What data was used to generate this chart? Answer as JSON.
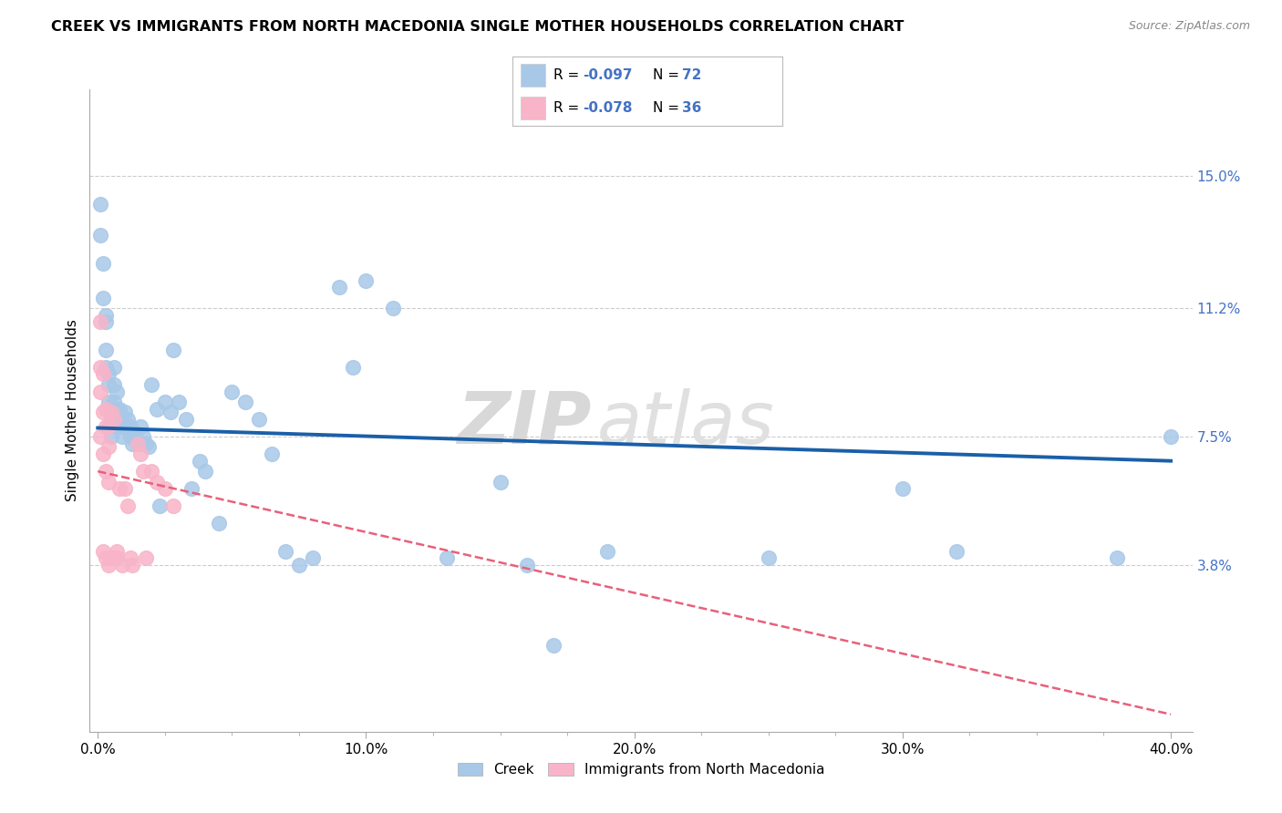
{
  "title": "CREEK VS IMMIGRANTS FROM NORTH MACEDONIA SINGLE MOTHER HOUSEHOLDS CORRELATION CHART",
  "source_text": "Source: ZipAtlas.com",
  "ylabel": "Single Mother Households",
  "xtick_labels": [
    "0.0%",
    "",
    "",
    "",
    "10.0%",
    "",
    "",
    "",
    "20.0%",
    "",
    "",
    "",
    "30.0%",
    "",
    "",
    "",
    "40.0%"
  ],
  "xtick_vals": [
    0.0,
    0.025,
    0.05,
    0.075,
    0.1,
    0.125,
    0.15,
    0.175,
    0.2,
    0.225,
    0.25,
    0.275,
    0.3,
    0.325,
    0.35,
    0.375,
    0.4
  ],
  "ytick_labels": [
    "3.8%",
    "7.5%",
    "11.2%",
    "15.0%"
  ],
  "ytick_vals": [
    0.038,
    0.075,
    0.112,
    0.15
  ],
  "xlim": [
    -0.003,
    0.408
  ],
  "ylim": [
    -0.01,
    0.175
  ],
  "creek_R": "-0.097",
  "creek_N": "72",
  "immig_R": "-0.078",
  "immig_N": "36",
  "creek_color": "#a8c8e8",
  "creek_line_color": "#1a5fa8",
  "immig_color": "#f8b4c8",
  "immig_line_color": "#e8607a",
  "watermark_zip": "ZIP",
  "watermark_atlas": "atlas",
  "creek_scatter_x": [
    0.001,
    0.001,
    0.002,
    0.002,
    0.003,
    0.003,
    0.003,
    0.003,
    0.004,
    0.004,
    0.004,
    0.005,
    0.005,
    0.005,
    0.005,
    0.006,
    0.006,
    0.006,
    0.006,
    0.007,
    0.007,
    0.007,
    0.008,
    0.008,
    0.009,
    0.009,
    0.01,
    0.01,
    0.011,
    0.012,
    0.012,
    0.013,
    0.013,
    0.014,
    0.015,
    0.016,
    0.017,
    0.018,
    0.019,
    0.02,
    0.022,
    0.023,
    0.025,
    0.027,
    0.028,
    0.03,
    0.033,
    0.035,
    0.038,
    0.04,
    0.045,
    0.05,
    0.055,
    0.06,
    0.065,
    0.07,
    0.075,
    0.08,
    0.09,
    0.095,
    0.1,
    0.11,
    0.13,
    0.15,
    0.16,
    0.17,
    0.19,
    0.25,
    0.3,
    0.32,
    0.38,
    0.4
  ],
  "creek_scatter_y": [
    0.142,
    0.133,
    0.125,
    0.115,
    0.11,
    0.108,
    0.1,
    0.095,
    0.093,
    0.09,
    0.085,
    0.082,
    0.08,
    0.078,
    0.075,
    0.095,
    0.09,
    0.085,
    0.08,
    0.088,
    0.083,
    0.078,
    0.083,
    0.078,
    0.08,
    0.075,
    0.082,
    0.078,
    0.08,
    0.078,
    0.075,
    0.077,
    0.073,
    0.075,
    0.073,
    0.078,
    0.075,
    0.073,
    0.072,
    0.09,
    0.083,
    0.055,
    0.085,
    0.082,
    0.1,
    0.085,
    0.08,
    0.06,
    0.068,
    0.065,
    0.05,
    0.088,
    0.085,
    0.08,
    0.07,
    0.042,
    0.038,
    0.04,
    0.118,
    0.095,
    0.12,
    0.112,
    0.04,
    0.062,
    0.038,
    0.015,
    0.042,
    0.04,
    0.06,
    0.042,
    0.04,
    0.075
  ],
  "immig_scatter_x": [
    0.001,
    0.001,
    0.001,
    0.001,
    0.002,
    0.002,
    0.002,
    0.002,
    0.003,
    0.003,
    0.003,
    0.003,
    0.004,
    0.004,
    0.004,
    0.004,
    0.005,
    0.005,
    0.006,
    0.006,
    0.007,
    0.007,
    0.008,
    0.009,
    0.01,
    0.011,
    0.012,
    0.013,
    0.015,
    0.016,
    0.017,
    0.018,
    0.02,
    0.022,
    0.025,
    0.028
  ],
  "immig_scatter_y": [
    0.108,
    0.095,
    0.088,
    0.075,
    0.093,
    0.082,
    0.07,
    0.042,
    0.083,
    0.078,
    0.065,
    0.04,
    0.078,
    0.072,
    0.062,
    0.038,
    0.082,
    0.04,
    0.08,
    0.04,
    0.04,
    0.042,
    0.06,
    0.038,
    0.06,
    0.055,
    0.04,
    0.038,
    0.073,
    0.07,
    0.065,
    0.04,
    0.065,
    0.062,
    0.06,
    0.055
  ]
}
